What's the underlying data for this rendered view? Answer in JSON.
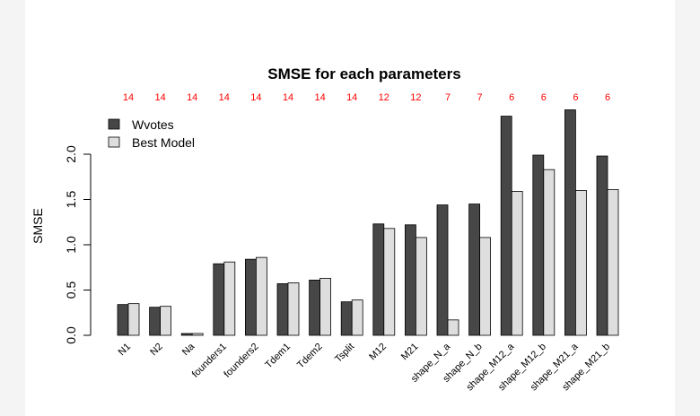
{
  "chart_data": {
    "type": "bar",
    "title": "SMSE for each parameters",
    "xlabel": "",
    "ylabel": "SMSE",
    "ylim": [
      0,
      2.5
    ],
    "yticks": [
      "0.0",
      "0.5",
      "1.0",
      "1.5",
      "2.0"
    ],
    "yticks_values": [
      0,
      0.5,
      1.0,
      1.5,
      2.0
    ],
    "grid": false,
    "legend_position": "top-left",
    "categories": [
      "N1",
      "N2",
      "Na",
      "founders1",
      "founders2",
      "Tdem1",
      "Tdem2",
      "Tsplit",
      "M12",
      "M21",
      "shape_N_a",
      "shape_N_b",
      "shape_M12_a",
      "shape_M12_b",
      "shape_M21_a",
      "shape_M21_b"
    ],
    "counts": [
      "14",
      "14",
      "14",
      "14",
      "14",
      "14",
      "14",
      "14",
      "12",
      "12",
      "7",
      "7",
      "6",
      "6",
      "6",
      "6"
    ],
    "series": [
      {
        "name": "Wvotes",
        "color": "#474747",
        "values": [
          0.34,
          0.31,
          0.02,
          0.79,
          0.84,
          0.57,
          0.61,
          0.37,
          1.23,
          1.22,
          1.44,
          1.45,
          2.42,
          1.99,
          2.49,
          1.98
        ]
      },
      {
        "name": "Best Model",
        "color": "#dedede",
        "values": [
          0.35,
          0.32,
          0.02,
          0.81,
          0.86,
          0.58,
          0.63,
          0.39,
          1.18,
          1.08,
          0.17,
          1.08,
          1.59,
          1.83,
          1.6,
          1.61
        ]
      }
    ],
    "count_color": "#ff0000"
  }
}
